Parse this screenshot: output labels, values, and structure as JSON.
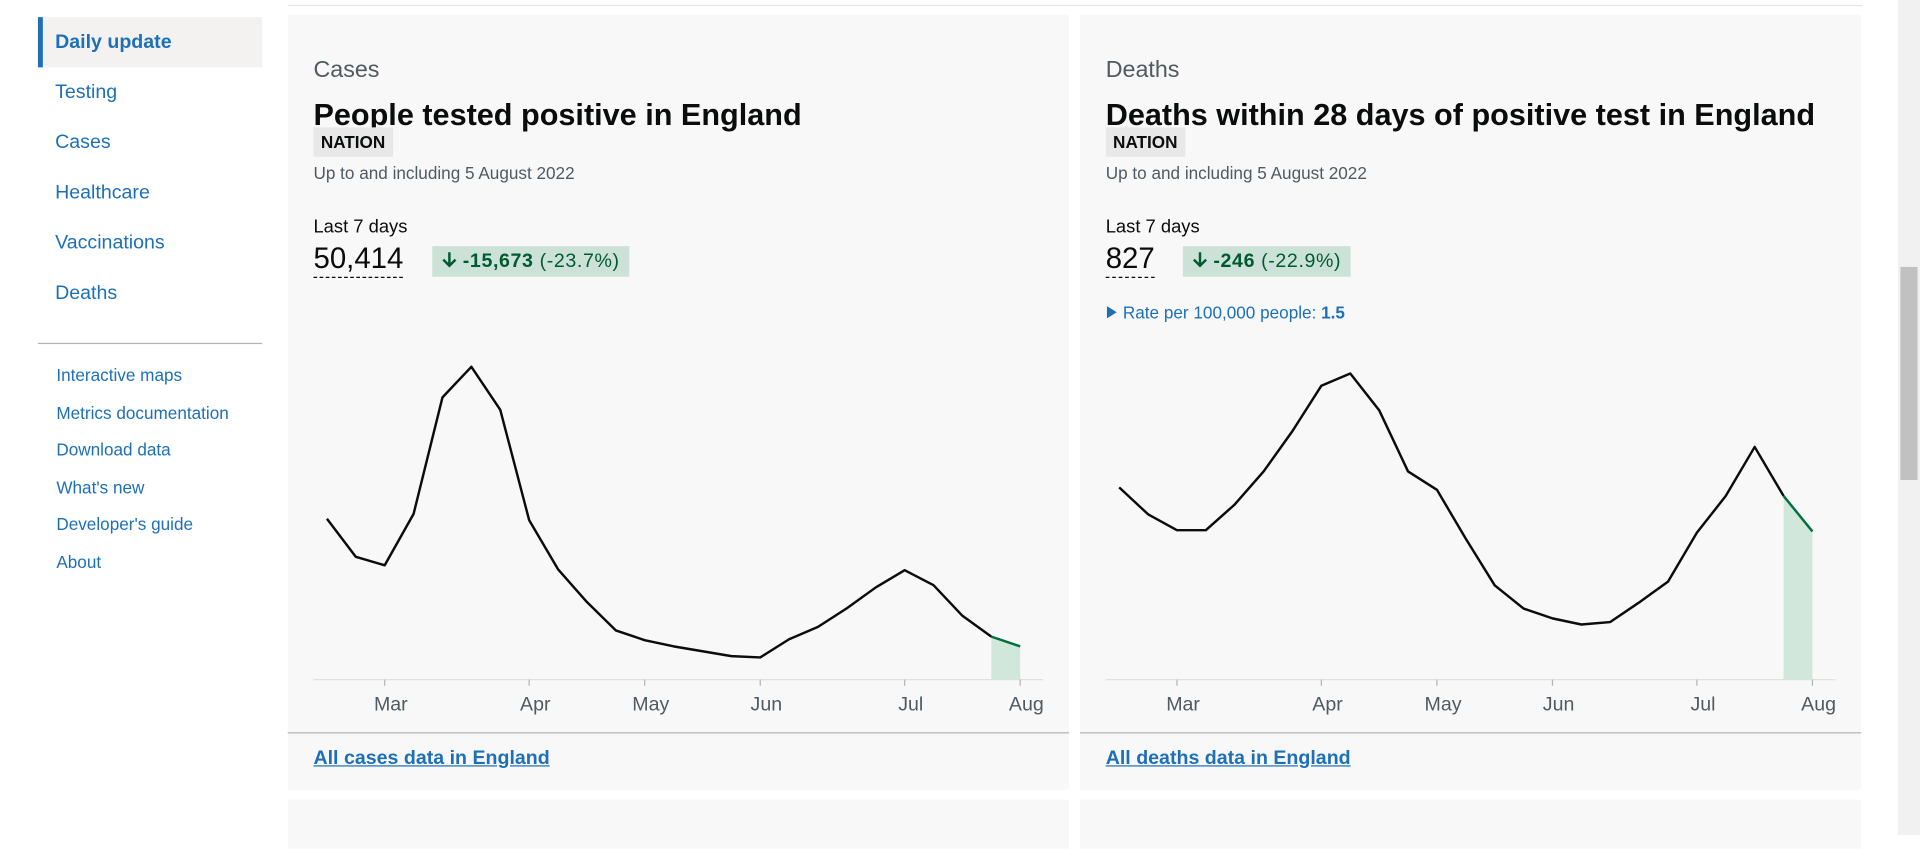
{
  "nav": {
    "primary": [
      "Daily update",
      "Testing",
      "Cases",
      "Healthcare",
      "Vaccinations",
      "Deaths"
    ],
    "secondary": [
      "Interactive maps",
      "Metrics documentation",
      "Download data",
      "What's new",
      "Developer's guide",
      "About"
    ]
  },
  "cards": [
    {
      "label": "Cases",
      "title": "People tested positive in England",
      "badge": "NATION",
      "updated": "Up to and including 5 August 2022",
      "period": "Last 7 days",
      "value": "50,414",
      "change": "-15,673",
      "change_pct": "(-23.7%)",
      "link": "All cases data in England"
    },
    {
      "label": "Deaths",
      "title": "Deaths within 28 days of positive test in England",
      "badge": "NATION",
      "updated": "Up to and including 5 August 2022",
      "period": "Last 7 days",
      "value": "827",
      "change": "-246",
      "change_pct": "(-22.9%)",
      "rate_label": "Rate per 100,000 people:",
      "rate_value": "1.5",
      "link": "All deaths data in England"
    }
  ],
  "chart_data": [
    {
      "type": "line",
      "categories": [
        null,
        null,
        "Mar",
        null,
        null,
        null,
        null,
        "Apr",
        null,
        null,
        null,
        "May",
        null,
        null,
        null,
        "Jun",
        null,
        null,
        null,
        null,
        "Jul",
        null,
        null,
        null,
        "Aug"
      ],
      "values": [
        36300,
        27700,
        25800,
        37400,
        63700,
        70600,
        60900,
        36000,
        24900,
        17500,
        11100,
        8900,
        7500,
        6400,
        5300,
        5000,
        9100,
        11900,
        16100,
        20800,
        24700,
        21300,
        14400,
        9700,
        7500
      ],
      "ylim": [
        0,
        76000
      ],
      "color": "#0b0c0c",
      "highlight_color": "#00703c",
      "highlight_fill": "#d2e7dc"
    },
    {
      "type": "line",
      "categories": [
        null,
        null,
        "Mar",
        null,
        null,
        null,
        null,
        "Apr",
        null,
        null,
        null,
        "May",
        null,
        null,
        null,
        "Jun",
        null,
        null,
        null,
        null,
        "Jul",
        null,
        null,
        null,
        "Aug"
      ],
      "values": [
        157,
        135,
        122,
        122,
        143,
        170,
        203,
        240,
        250,
        220,
        170,
        155,
        115,
        77,
        58,
        50,
        45,
        47,
        63,
        80,
        120,
        150,
        190,
        150,
        121
      ],
      "ylim": [
        0,
        275
      ],
      "color": "#0b0c0c",
      "highlight_color": "#00703c",
      "highlight_fill": "#d2e7dc"
    }
  ]
}
